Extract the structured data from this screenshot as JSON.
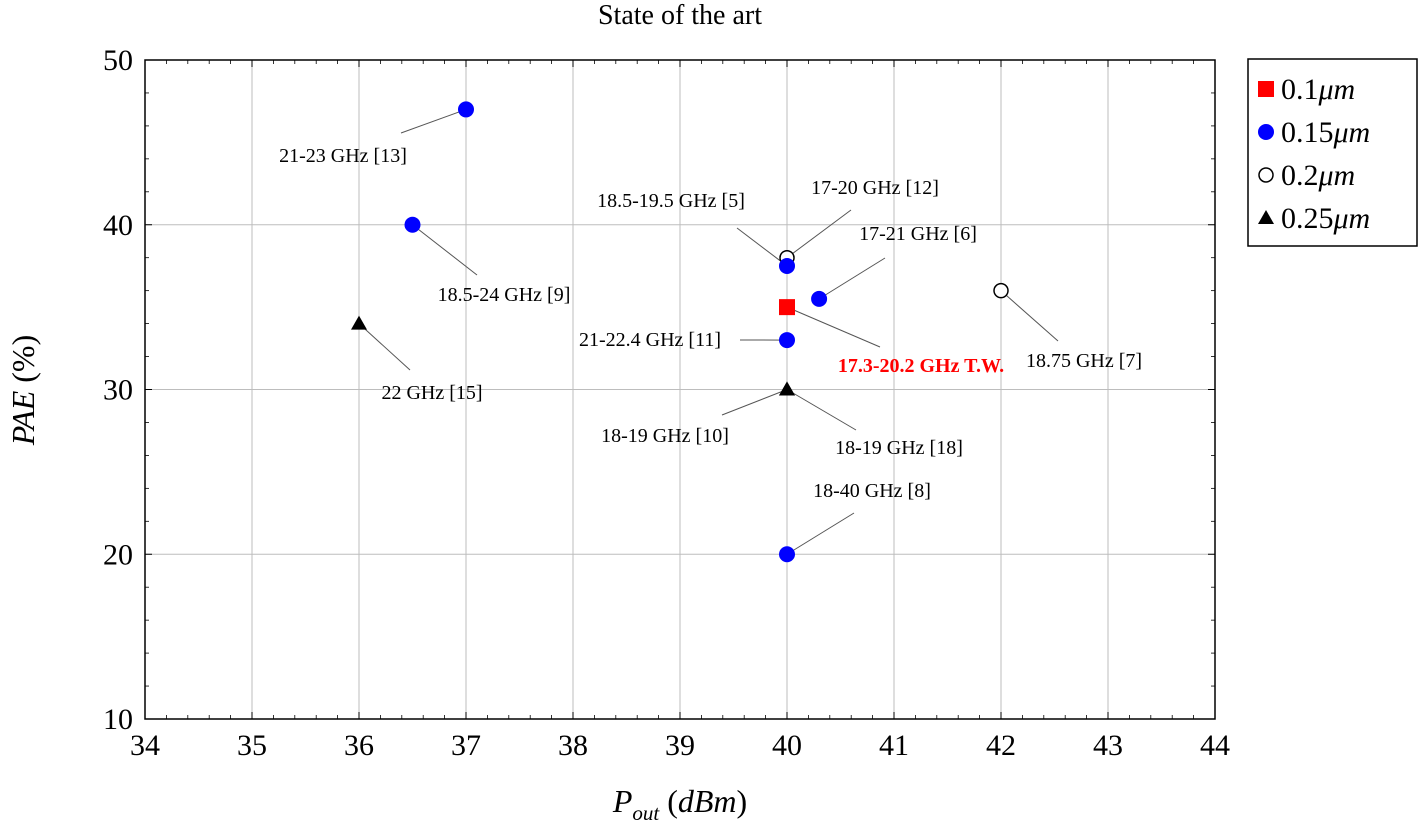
{
  "chart_data": {
    "type": "scatter",
    "title": "State of the art",
    "xlabel": "P_out (dBm)",
    "ylabel": "PAE (%)",
    "xlim": [
      34,
      44
    ],
    "ylim": [
      10,
      50
    ],
    "x_ticks": [
      34,
      35,
      36,
      37,
      38,
      39,
      40,
      41,
      42,
      43,
      44
    ],
    "y_ticks": [
      10,
      20,
      30,
      40,
      50
    ],
    "grid": true,
    "legend_position": "outside-right-top",
    "series": [
      {
        "name": "0.1μm",
        "marker": "square",
        "color": "#ff0000",
        "points": [
          {
            "x": 40,
            "y": 35,
            "label": "17.3-20.2 GHz T.W."
          }
        ]
      },
      {
        "name": "0.15μm",
        "marker": "circle-filled",
        "color": "#0000ff",
        "points": [
          {
            "x": 37,
            "y": 47,
            "label": "21-23 GHz [13]"
          },
          {
            "x": 36.5,
            "y": 40,
            "label": "18.5-24 GHz [9]"
          },
          {
            "x": 40,
            "y": 37.5,
            "label": "18.5-19.5 GHz [5]"
          },
          {
            "x": 40.3,
            "y": 35.5,
            "label": "17-21 GHz [6]"
          },
          {
            "x": 40,
            "y": 33,
            "label": "21-22.4 GHz [11]"
          },
          {
            "x": 40,
            "y": 20,
            "label": "18-40 GHz [8]"
          }
        ]
      },
      {
        "name": "0.2μm",
        "marker": "circle-open",
        "color": "#000000",
        "points": [
          {
            "x": 40,
            "y": 38,
            "label": "17-20 GHz [12]"
          },
          {
            "x": 42,
            "y": 36,
            "label": "18.75 GHz [7]"
          }
        ]
      },
      {
        "name": "0.25μm",
        "marker": "triangle",
        "color": "#000000",
        "points": [
          {
            "x": 36,
            "y": 34,
            "label": "22 GHz [15]"
          },
          {
            "x": 40,
            "y": 30,
            "label": "18-19 GHz [10]"
          },
          {
            "x": 40,
            "y": 30,
            "label": "18-19 GHz [18]"
          }
        ]
      }
    ]
  }
}
